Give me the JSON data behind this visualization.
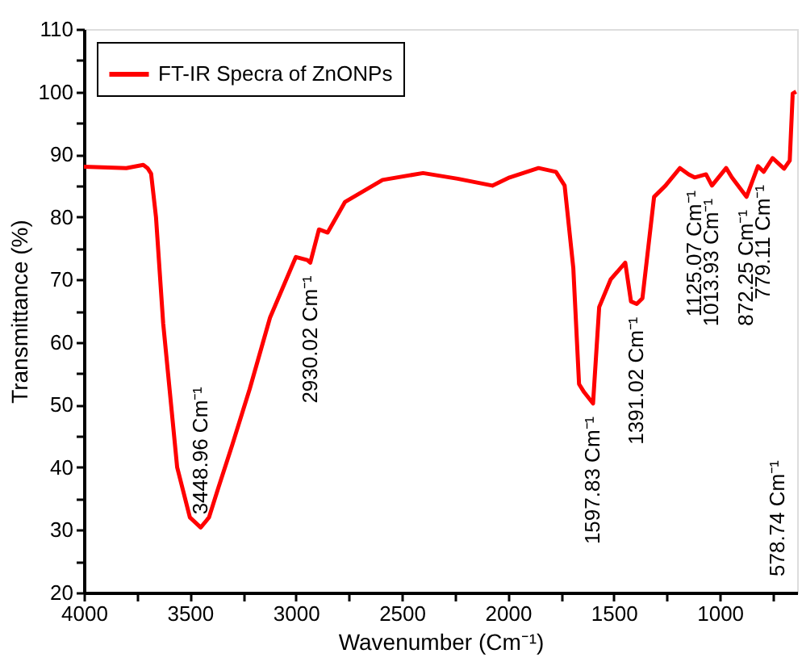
{
  "chart_data": {
    "type": "line",
    "xlabel": "Wavenumber (Cm⁻¹)",
    "ylabel": "Transmittance (%)",
    "xlim": [
      4000,
      635
    ],
    "ylim": [
      20,
      110
    ],
    "xticks": [
      4000,
      {
        "value": 3750,
        "label": null
      },
      3500,
      {
        "value": 3250,
        "label": null
      },
      3000,
      {
        "value": 2750,
        "label": null
      },
      2500,
      {
        "value": 2250,
        "label": null
      },
      2000,
      {
        "value": 1750,
        "label": null
      },
      1500,
      {
        "value": 1250,
        "label": null
      },
      1000,
      {
        "value": 750,
        "label": null
      }
    ],
    "yticks": [
      20,
      {
        "value": 25,
        "label": null
      },
      30,
      {
        "value": 35,
        "label": null
      },
      40,
      {
        "value": 45,
        "label": null
      },
      50,
      {
        "value": 55,
        "label": null
      },
      60,
      {
        "value": 65,
        "label": null
      },
      70,
      {
        "value": 75,
        "label": null
      },
      80,
      {
        "value": 85,
        "label": null
      },
      90,
      {
        "value": 95,
        "label": null
      },
      100,
      {
        "value": 105,
        "label": null
      },
      110
    ],
    "grid": false,
    "legend": "top left",
    "marker": "none",
    "line_style": "solid",
    "series": [
      {
        "name": "FT-IR Specra of ZnONPs",
        "color": "#ff0000",
        "x": [
          4000,
          3800,
          3720,
          3700,
          3683,
          3660,
          3626,
          3560,
          3500,
          3449,
          3410,
          3367,
          3300,
          3218,
          3122,
          3000,
          2946,
          2932,
          2891,
          2850,
          2768,
          2591,
          2400,
          2237,
          2073,
          1992,
          1855,
          1773,
          1732,
          1691,
          1664,
          1640,
          1598,
          1569,
          1515,
          1446,
          1419,
          1392,
          1365,
          1310,
          1256,
          1188,
          1147,
          1119,
          1065,
          1037,
          970,
          943,
          874,
          820,
          793,
          751,
          697,
          670,
          656,
          640
        ],
        "values": [
          88,
          87.8,
          88.3,
          87.8,
          86.9,
          80,
          63,
          40,
          32,
          30.4,
          32,
          36.6,
          43.6,
          52.5,
          63.9,
          73.6,
          73.1,
          72.7,
          78,
          77.5,
          82.4,
          85.9,
          87,
          86.1,
          85,
          86.3,
          87.8,
          87.2,
          85,
          71.8,
          53.3,
          52,
          50.2,
          65.6,
          70,
          72.7,
          66.5,
          66.1,
          67,
          83.2,
          85,
          87.8,
          86.8,
          86.3,
          86.8,
          85,
          87.8,
          86.3,
          83.2,
          88.1,
          87.2,
          89.4,
          87.7,
          89,
          99.7,
          100
        ]
      }
    ],
    "annotations": [
      {
        "text": "3448.96 Cm⁻¹",
        "x": 3449,
        "y": 30.4
      },
      {
        "text": "2930.02 Cm⁻¹",
        "x": 2932,
        "y": 72.7
      },
      {
        "text": "1597.83 Cm⁻¹",
        "x": 1598,
        "y": 50.2
      },
      {
        "text": "1391.02 Cm⁻¹",
        "x": 1392,
        "y": 66.1
      },
      {
        "text": "1125.07 Cm⁻¹",
        "x": 1119,
        "y": 86.3
      },
      {
        "text": "1013.93 Cm⁻¹",
        "x": 1037,
        "y": 85
      },
      {
        "text": "872.25 Cm⁻¹",
        "x": 874,
        "y": 83.2
      },
      {
        "text": "779.11 Cm⁻¹",
        "x": 793,
        "y": 87.2
      },
      "578.74 Cm⁻¹"
    ]
  }
}
